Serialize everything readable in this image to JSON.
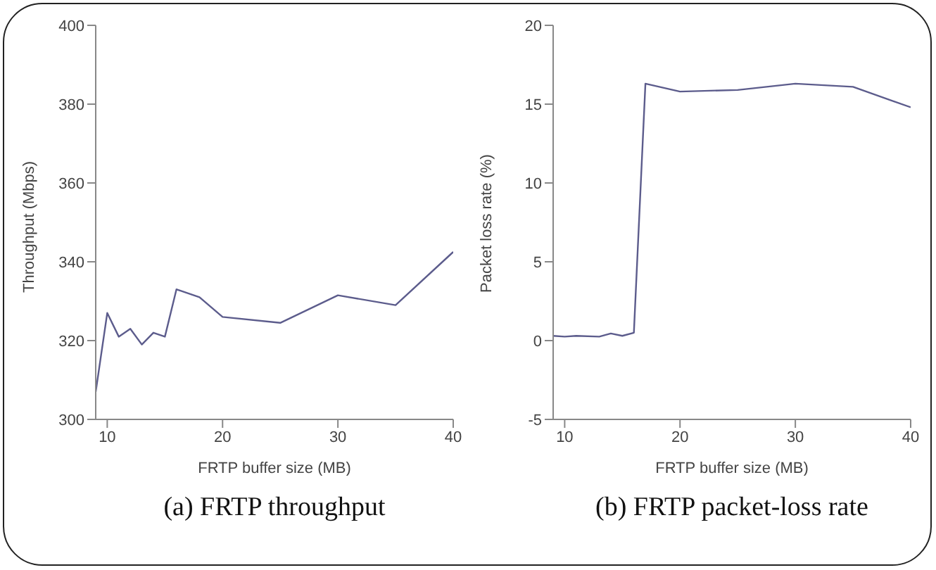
{
  "chart_data": [
    {
      "type": "line",
      "xlabel": "FRTP buffer size (MB)",
      "ylabel": "Throughput (Mbps)",
      "annotations": [
        "(a) FRTP throughput"
      ],
      "x": [
        9,
        10,
        11,
        12,
        13,
        14,
        15,
        16,
        18,
        20,
        25,
        30,
        35,
        40
      ],
      "series": [
        {
          "color": "#5c5c8c",
          "values": [
            307,
            327,
            321,
            323,
            319,
            322,
            321,
            333,
            331,
            326,
            324.5,
            331.5,
            329,
            342.5
          ]
        }
      ],
      "xlim": [
        9,
        40
      ],
      "xticks": [
        10,
        20,
        30,
        40
      ],
      "ylim": [
        300,
        400
      ],
      "yticks": [
        300,
        320,
        340,
        360,
        380,
        400
      ],
      "grid": false,
      "legend": false
    },
    {
      "type": "line",
      "xlabel": "FRTP buffer size (MB)",
      "ylabel": "Packet loss rate (%)",
      "annotations": [
        "(b) FRTP packet-loss rate"
      ],
      "x": [
        9,
        10,
        11,
        13,
        14,
        15,
        16,
        17,
        20,
        25,
        30,
        35,
        40
      ],
      "series": [
        {
          "color": "#5c5c8c",
          "values": [
            0.3,
            0.25,
            0.3,
            0.25,
            0.45,
            0.3,
            0.5,
            16.3,
            15.8,
            15.9,
            16.3,
            16.1,
            14.8
          ]
        }
      ],
      "xlim": [
        9,
        40
      ],
      "xticks": [
        10,
        20,
        30,
        40
      ],
      "ylim": [
        -5,
        20
      ],
      "yticks": [
        -5,
        0,
        5,
        10,
        15,
        20
      ],
      "grid": false,
      "legend": false
    }
  ]
}
